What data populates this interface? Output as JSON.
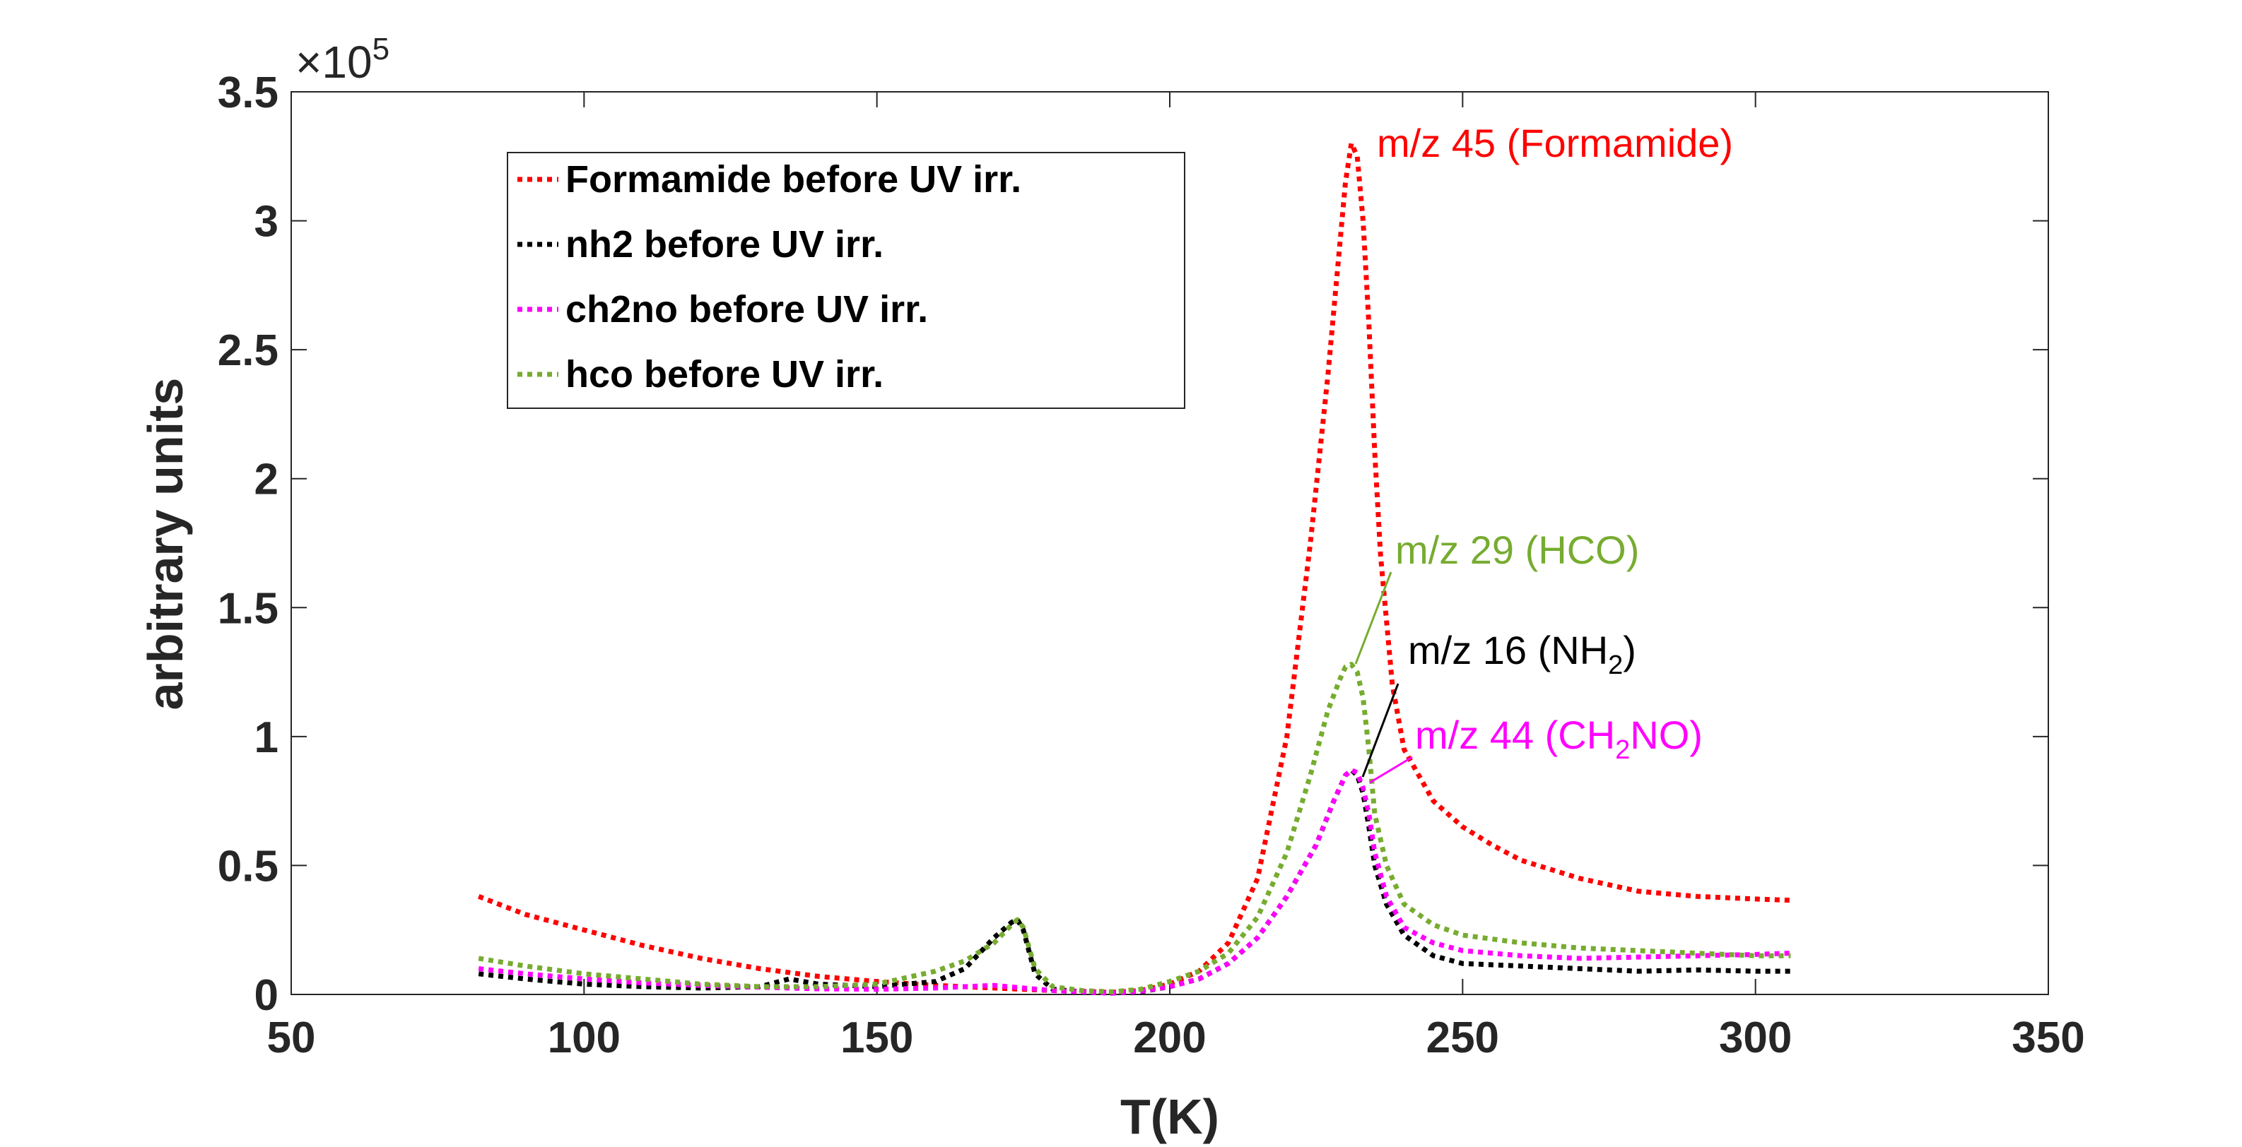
{
  "chart_data": {
    "type": "line",
    "xlabel": "T(K)",
    "ylabel": "arbitrary units",
    "xlim": [
      50,
      350
    ],
    "ylim": [
      0,
      350000
    ],
    "xticks": [
      "50",
      "100",
      "150",
      "200",
      "250",
      "300",
      "350"
    ],
    "yticks": [
      "0",
      "0.5",
      "1",
      "1.5",
      "2",
      "2.5",
      "3",
      "3.5"
    ],
    "y_exponent_base": "×10",
    "y_exponent_power": "5",
    "grid": false,
    "legend_position": "top-left",
    "series": [
      {
        "name": "Formamide before UV irr.",
        "color": "#ff0000",
        "x": [
          82,
          90,
          100,
          110,
          120,
          130,
          140,
          150,
          160,
          170,
          175,
          180,
          185,
          190,
          195,
          200,
          205,
          210,
          215,
          220,
          224,
          227,
          229,
          230,
          231,
          232,
          233,
          234,
          235,
          236,
          238,
          240,
          245,
          250,
          255,
          260,
          270,
          280,
          290,
          300,
          306
        ],
        "y": [
          38000,
          31000,
          25000,
          19000,
          14000,
          10000,
          7000,
          5000,
          3500,
          2500,
          2000,
          1500,
          1200,
          800,
          1500,
          4000,
          9000,
          20000,
          45000,
          100000,
          175000,
          240000,
          290000,
          315000,
          330000,
          325000,
          300000,
          260000,
          210000,
          170000,
          120000,
          95000,
          75000,
          65000,
          58000,
          52000,
          45000,
          40000,
          38000,
          37000,
          36500
        ]
      },
      {
        "name": "nh2 before UV irr.",
        "color": "#000000",
        "x": [
          82,
          90,
          100,
          110,
          120,
          130,
          135,
          140,
          150,
          160,
          165,
          170,
          173,
          174,
          175,
          177,
          180,
          185,
          190,
          195,
          200,
          205,
          210,
          215,
          220,
          225,
          228,
          230,
          231,
          232,
          233,
          234,
          235,
          237,
          240,
          245,
          250,
          260,
          270,
          280,
          290,
          300,
          306
        ],
        "y": [
          8000,
          6000,
          4000,
          3000,
          2500,
          3000,
          6000,
          4000,
          3000,
          5000,
          10000,
          22000,
          28000,
          29000,
          25000,
          8000,
          2000,
          1000,
          500,
          1000,
          3000,
          6000,
          12000,
          22000,
          38000,
          58000,
          75000,
          85000,
          87000,
          85000,
          78000,
          65000,
          50000,
          35000,
          23000,
          15000,
          12000,
          11000,
          10000,
          9000,
          9500,
          9000,
          9000
        ]
      },
      {
        "name": "ch2no before UV irr.",
        "color": "#ff00ff",
        "x": [
          82,
          90,
          100,
          110,
          120,
          130,
          140,
          150,
          160,
          170,
          175,
          180,
          185,
          190,
          195,
          200,
          205,
          210,
          215,
          220,
          225,
          228,
          230,
          231,
          232,
          233,
          234,
          235,
          237,
          240,
          245,
          250,
          260,
          270,
          280,
          290,
          300,
          306
        ],
        "y": [
          10000,
          8000,
          6000,
          4500,
          3500,
          2800,
          2200,
          2000,
          2500,
          3500,
          2500,
          1500,
          1000,
          500,
          1200,
          3000,
          6000,
          12000,
          22000,
          38000,
          58000,
          75000,
          85000,
          87000,
          86000,
          80000,
          70000,
          55000,
          38000,
          26000,
          20000,
          17000,
          15000,
          14000,
          14500,
          15000,
          15500,
          16000
        ]
      },
      {
        "name": "hco before UV irr.",
        "color": "#77ac30",
        "x": [
          82,
          90,
          100,
          110,
          120,
          130,
          140,
          150,
          160,
          165,
          170,
          173,
          174,
          175,
          177,
          180,
          185,
          190,
          195,
          200,
          205,
          210,
          215,
          220,
          224,
          227,
          229,
          230,
          231,
          232,
          233,
          234,
          235,
          237,
          240,
          245,
          250,
          260,
          270,
          280,
          290,
          300,
          306
        ],
        "y": [
          14000,
          11000,
          8000,
          6000,
          4000,
          3000,
          3000,
          4000,
          9000,
          13000,
          20000,
          27000,
          29000,
          26000,
          10000,
          3000,
          1500,
          1000,
          2000,
          5000,
          9000,
          16000,
          30000,
          55000,
          85000,
          110000,
          122000,
          127000,
          128000,
          125000,
          115000,
          95000,
          70000,
          50000,
          35000,
          27000,
          23000,
          20000,
          18000,
          17000,
          16000,
          15000,
          15000
        ]
      }
    ],
    "annotations": [
      {
        "text": "m/z 45 (Formamide)",
        "color": "#ff0000"
      },
      {
        "text": "m/z 29 (HCO)",
        "color": "#77ac30"
      },
      {
        "text": "m/z 16 (NH",
        "subscript": "2",
        "suffix": ")",
        "color": "#000000"
      },
      {
        "text": "m/z 44 (CH",
        "subscript": "2",
        "suffix": "NO)",
        "color": "#ff00ff"
      }
    ]
  }
}
